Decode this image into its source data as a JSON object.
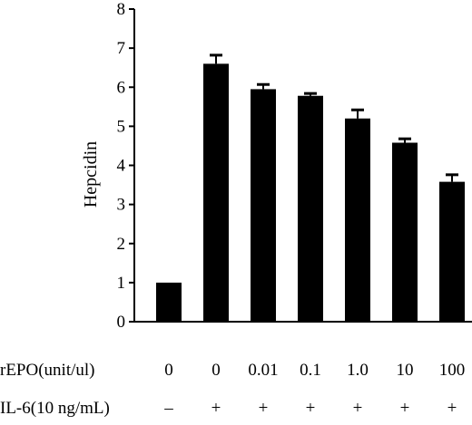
{
  "chart_data": {
    "type": "bar",
    "title": "",
    "xlabel": "",
    "ylabel": "Hepcidin",
    "ylim": [
      0,
      8
    ],
    "yticks": [
      "0",
      "1",
      "2",
      "3",
      "4",
      "5",
      "6",
      "7",
      "8"
    ],
    "categories": [
      "0",
      "0",
      "0.01",
      "0.1",
      "1.0",
      "10",
      "100"
    ],
    "values": [
      1.0,
      6.6,
      5.95,
      5.78,
      5.2,
      4.58,
      3.58
    ],
    "errors": [
      0,
      0.22,
      0.12,
      0.06,
      0.22,
      0.1,
      0.18
    ],
    "bar_color": "#000000",
    "grid": false,
    "x_rows": [
      {
        "label": "rEPO(unit/ul)",
        "values": [
          "0",
          "0",
          "0.01",
          "0.1",
          "1.0",
          "10",
          "100"
        ]
      },
      {
        "label": "IL-6(10 ng/mL)",
        "values": [
          "–",
          "+",
          "+",
          "+",
          "+",
          "+",
          "+"
        ]
      }
    ]
  }
}
